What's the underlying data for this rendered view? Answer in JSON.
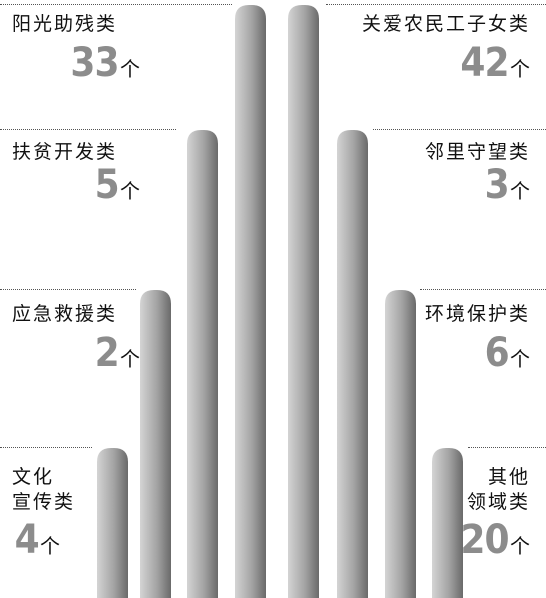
{
  "chart_data": {
    "type": "bar",
    "unit": "个",
    "categories": [
      {
        "name": "阳光助残类",
        "lines": [
          "阳光助残类"
        ],
        "value": 33,
        "side": "left"
      },
      {
        "name": "扶贫开发类",
        "lines": [
          "扶贫开发类"
        ],
        "value": 5,
        "side": "left"
      },
      {
        "name": "应急救援类",
        "lines": [
          "应急救援类"
        ],
        "value": 2,
        "side": "left"
      },
      {
        "name": "文化宣传类",
        "lines": [
          "文化",
          "宣传类"
        ],
        "value": 4,
        "side": "left"
      },
      {
        "name": "关爱农民工子女类",
        "lines": [
          "关爱农民工子女类"
        ],
        "value": 42,
        "side": "right"
      },
      {
        "name": "邻里守望类",
        "lines": [
          "邻里守望类"
        ],
        "value": 3,
        "side": "right"
      },
      {
        "name": "环境保护类",
        "lines": [
          "环境保护类"
        ],
        "value": 6,
        "side": "right"
      },
      {
        "name": "其他领域类",
        "lines": [
          "其他",
          "领域类"
        ],
        "value": 20,
        "side": "right"
      }
    ],
    "colors": {
      "bar_light": "#d9d9d9",
      "bar_dark": "#6e6e6e",
      "number": "#8c8c8c"
    }
  }
}
